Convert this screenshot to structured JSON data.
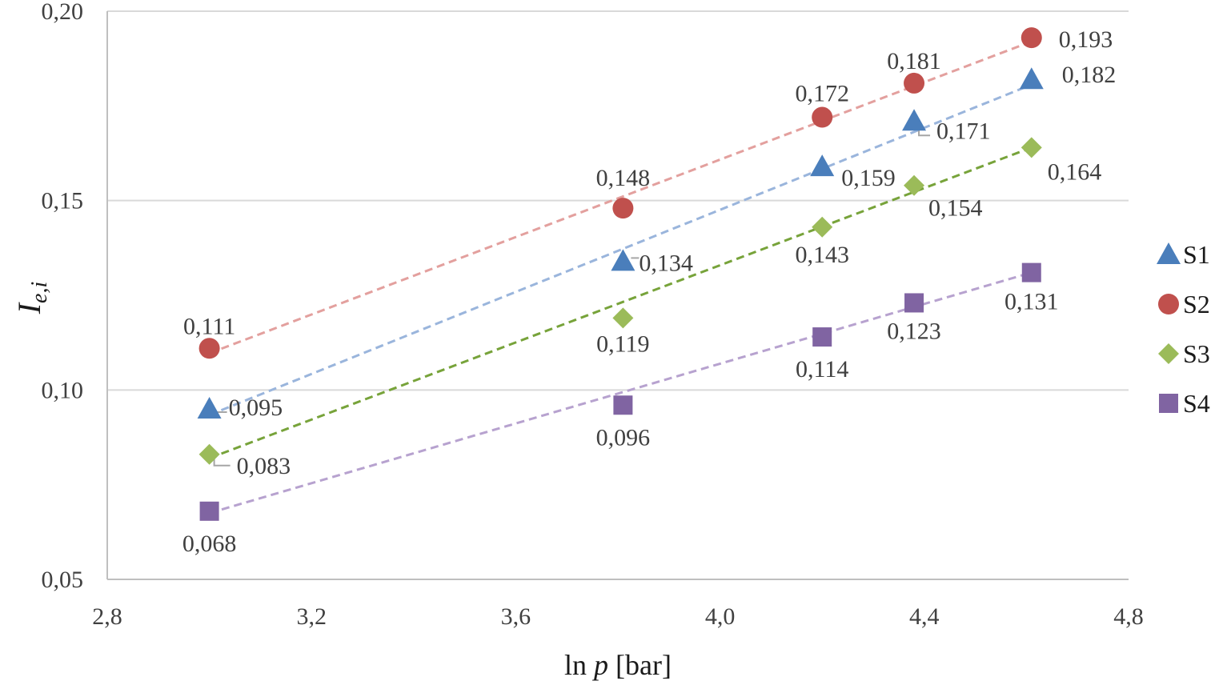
{
  "chart_data": {
    "type": "scatter",
    "xlabel_main": "ln ",
    "xlabel_italic": "p",
    "xlabel_unit": " [bar]",
    "ylabel_main": "I",
    "ylabel_sub": "e,i",
    "xlim": [
      2.8,
      4.8
    ],
    "ylim": [
      0.05,
      0.2
    ],
    "x_ticks": [
      {
        "value": 2.8,
        "label": "2,8"
      },
      {
        "value": 3.2,
        "label": "3,2"
      },
      {
        "value": 3.6,
        "label": "3,6"
      },
      {
        "value": 4.0,
        "label": "4,0"
      },
      {
        "value": 4.4,
        "label": "4,4"
      },
      {
        "value": 4.8,
        "label": "4,8"
      }
    ],
    "y_ticks": [
      {
        "value": 0.05,
        "label": "0,05"
      },
      {
        "value": 0.1,
        "label": "0,10"
      },
      {
        "value": 0.15,
        "label": "0,15"
      },
      {
        "value": 0.2,
        "label": "0,20"
      }
    ],
    "grid": "horizontal",
    "legend_position": "right",
    "series": [
      {
        "name": "S1",
        "marker": "triangle",
        "color": "#4a7ebb",
        "trend_color": "#9ab5dc",
        "trend": [
          [
            3.0,
            0.0934
          ],
          [
            4.61,
            0.1806
          ]
        ],
        "points": [
          {
            "x": 3.0,
            "y": 0.095,
            "label": "0,095"
          },
          {
            "x": 3.81,
            "y": 0.134,
            "label": "0,134"
          },
          {
            "x": 4.2,
            "y": 0.159,
            "label": "0,159"
          },
          {
            "x": 4.38,
            "y": 0.171,
            "label": "0,171"
          },
          {
            "x": 4.61,
            "y": 0.182,
            "label": "0,182"
          }
        ]
      },
      {
        "name": "S2",
        "marker": "circle",
        "color": "#c0504d",
        "trend_color": "#e3a09e",
        "trend": [
          [
            3.0,
            0.1097
          ],
          [
            4.61,
            0.192
          ]
        ],
        "points": [
          {
            "x": 3.0,
            "y": 0.111,
            "label": "0,111"
          },
          {
            "x": 3.81,
            "y": 0.148,
            "label": "0,148"
          },
          {
            "x": 4.2,
            "y": 0.172,
            "label": "0,172"
          },
          {
            "x": 4.38,
            "y": 0.181,
            "label": "0,181"
          },
          {
            "x": 4.61,
            "y": 0.193,
            "label": "0,193"
          }
        ]
      },
      {
        "name": "S3",
        "marker": "diamond",
        "color": "#9bbb59",
        "trend_color": "#77a33a",
        "trend": [
          [
            3.0,
            0.082
          ],
          [
            4.61,
            0.164
          ]
        ],
        "points": [
          {
            "x": 3.0,
            "y": 0.083,
            "label": "0,083"
          },
          {
            "x": 3.81,
            "y": 0.119,
            "label": "0,119"
          },
          {
            "x": 4.2,
            "y": 0.143,
            "label": "0,143"
          },
          {
            "x": 4.38,
            "y": 0.154,
            "label": "0,154"
          },
          {
            "x": 4.61,
            "y": 0.164,
            "label": "0,164"
          }
        ]
      },
      {
        "name": "S4",
        "marker": "square",
        "color": "#8064a2",
        "trend_color": "#b7a2cf",
        "trend": [
          [
            3.0,
            0.0675
          ],
          [
            4.61,
            0.131
          ]
        ],
        "points": [
          {
            "x": 3.0,
            "y": 0.068,
            "label": "0,068"
          },
          {
            "x": 3.81,
            "y": 0.096,
            "label": "0,096"
          },
          {
            "x": 4.2,
            "y": 0.114,
            "label": "0,114"
          },
          {
            "x": 4.38,
            "y": 0.123,
            "label": "0,123"
          },
          {
            "x": 4.61,
            "y": 0.131,
            "label": "0,131"
          }
        ]
      }
    ]
  }
}
